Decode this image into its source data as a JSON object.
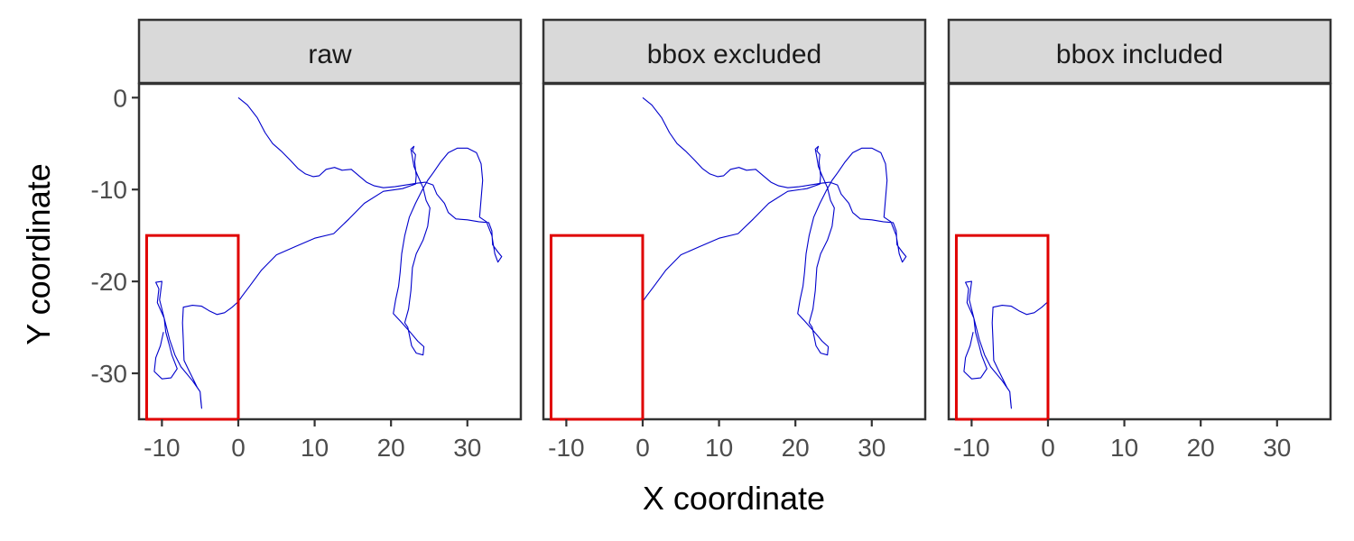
{
  "chart_data": {
    "type": "line",
    "xlabel": "X coordinate",
    "ylabel": "Y coordinate",
    "xlim": [
      -13,
      37
    ],
    "ylim": [
      -35,
      1.5
    ],
    "x_ticks": [
      -10,
      0,
      10,
      20,
      30
    ],
    "y_ticks": [
      0,
      -10,
      -20,
      -30
    ],
    "grid": false,
    "panels": [
      {
        "strip": "raw",
        "track": "full"
      },
      {
        "strip": "bbox excluded",
        "track": "outside"
      },
      {
        "strip": "bbox included",
        "track": "inside"
      }
    ],
    "bbox": {
      "x": [
        -12,
        0
      ],
      "y": [
        -35,
        -15
      ]
    },
    "colors": {
      "track": "#0000cc",
      "bbox": "#e00000",
      "strip_fill": "#d9d9d9",
      "frame": "#333333"
    },
    "track_outside": [
      [
        0,
        0
      ],
      [
        1.2,
        -0.8
      ],
      [
        2.5,
        -2.2
      ],
      [
        3.5,
        -3.8
      ],
      [
        4.5,
        -5
      ],
      [
        5.6,
        -5.8
      ],
      [
        6.8,
        -6.8
      ],
      [
        7.8,
        -7.7
      ],
      [
        8.8,
        -8.3
      ],
      [
        9.8,
        -8.6
      ],
      [
        10.6,
        -8.5
      ],
      [
        11.5,
        -7.8
      ],
      [
        12.6,
        -7.6
      ],
      [
        13.6,
        -7.9
      ],
      [
        14.8,
        -7.8
      ],
      [
        15.8,
        -8.5
      ],
      [
        16.8,
        -9.2
      ],
      [
        17.8,
        -9.6
      ],
      [
        19,
        -9.8
      ],
      [
        20.5,
        -9.7
      ],
      [
        22,
        -9.5
      ],
      [
        23.5,
        -9.3
      ],
      [
        24.5,
        -9.2
      ],
      [
        25.5,
        -9.5
      ],
      [
        26,
        -10.5
      ],
      [
        27,
        -11.5
      ],
      [
        27.5,
        -12.5
      ],
      [
        28.5,
        -13.2
      ],
      [
        30,
        -13.3
      ],
      [
        31.5,
        -13.5
      ],
      [
        32.8,
        -13.6
      ],
      [
        33.2,
        -14.5
      ],
      [
        33.3,
        -16
      ],
      [
        34,
        -16.8
      ],
      [
        34.5,
        -17.3
      ],
      [
        34,
        -17.9
      ],
      [
        33.6,
        -17
      ],
      [
        33.2,
        -15
      ],
      [
        32.5,
        -13.5
      ],
      [
        31.6,
        -13
      ],
      [
        31.8,
        -11
      ],
      [
        32,
        -9
      ],
      [
        31.8,
        -7.2
      ],
      [
        31.2,
        -6
      ],
      [
        30,
        -5.5
      ],
      [
        28.7,
        -5.5
      ],
      [
        27.5,
        -6
      ],
      [
        26.5,
        -7
      ],
      [
        25.5,
        -8.2
      ],
      [
        24.8,
        -9
      ],
      [
        24,
        -10.2
      ],
      [
        23.2,
        -11.5
      ],
      [
        22.4,
        -13
      ],
      [
        21.8,
        -15
      ],
      [
        21.4,
        -17
      ],
      [
        21.2,
        -19
      ],
      [
        21,
        -20.5
      ],
      [
        20.6,
        -22
      ],
      [
        20.3,
        -23.5
      ],
      [
        21.2,
        -24.3
      ],
      [
        22.5,
        -25.5
      ],
      [
        23.5,
        -26.5
      ],
      [
        24.3,
        -27.1
      ],
      [
        24.2,
        -28
      ],
      [
        23.3,
        -27.8
      ],
      [
        22.7,
        -27
      ],
      [
        22.2,
        -25
      ],
      [
        21.8,
        -24.5
      ],
      [
        22.3,
        -23
      ],
      [
        22.6,
        -21
      ],
      [
        22.8,
        -18.5
      ],
      [
        23.3,
        -17
      ],
      [
        24.2,
        -15.5
      ],
      [
        24.8,
        -14
      ],
      [
        25.1,
        -12
      ],
      [
        24.6,
        -11.2
      ],
      [
        24.2,
        -9.8
      ],
      [
        23.5,
        -8.5
      ],
      [
        23,
        -7.5
      ],
      [
        22.8,
        -6.5
      ],
      [
        22.6,
        -5.6
      ],
      [
        23,
        -5.3
      ],
      [
        22.8,
        -5.8
      ],
      [
        23.2,
        -6.2
      ],
      [
        23.1,
        -7
      ],
      [
        23.3,
        -8.5
      ],
      [
        23.2,
        -9.4
      ],
      [
        21.5,
        -9.9
      ],
      [
        19,
        -10.2
      ],
      [
        16.5,
        -11.5
      ],
      [
        14.5,
        -13.2
      ],
      [
        12.5,
        -14.8
      ],
      [
        10,
        -15.3
      ],
      [
        7.5,
        -16.2
      ],
      [
        5,
        -17.1
      ],
      [
        3,
        -18.8
      ],
      [
        1.5,
        -20.5
      ],
      [
        0.5,
        -21.6
      ],
      [
        0,
        -22.2
      ]
    ],
    "track_inside": [
      [
        0,
        -22.2
      ],
      [
        -0.8,
        -22.8
      ],
      [
        -1.8,
        -23.4
      ],
      [
        -2.8,
        -23.6
      ],
      [
        -3.8,
        -23.2
      ],
      [
        -4.8,
        -22.7
      ],
      [
        -6,
        -22.6
      ],
      [
        -7.2,
        -22.8
      ],
      [
        -7.3,
        -24.5
      ],
      [
        -7.2,
        -26.5
      ],
      [
        -7.1,
        -28.6
      ],
      [
        -6.4,
        -29.8
      ],
      [
        -5.8,
        -30.8
      ],
      [
        -5.4,
        -31.5
      ],
      [
        -5,
        -32
      ],
      [
        -4.9,
        -33
      ],
      [
        -4.8,
        -33.8
      ],
      [
        -5,
        -32
      ],
      [
        -6,
        -30.8
      ],
      [
        -7.5,
        -29.3
      ],
      [
        -8.3,
        -28
      ],
      [
        -9,
        -26.3
      ],
      [
        -9.7,
        -24
      ],
      [
        -10.6,
        -22.3
      ],
      [
        -10.4,
        -20.8
      ],
      [
        -10.8,
        -20.1
      ],
      [
        -10,
        -20
      ],
      [
        -10.3,
        -22
      ],
      [
        -9.7,
        -24
      ],
      [
        -9.5,
        -25.5
      ],
      [
        -9,
        -27
      ],
      [
        -8.7,
        -28
      ],
      [
        -8,
        -29.5
      ],
      [
        -8.8,
        -30.5
      ],
      [
        -10,
        -30.6
      ],
      [
        -11,
        -29.8
      ],
      [
        -10.8,
        -28.3
      ],
      [
        -10.2,
        -27
      ],
      [
        -9.8,
        -25.5
      ]
    ]
  }
}
